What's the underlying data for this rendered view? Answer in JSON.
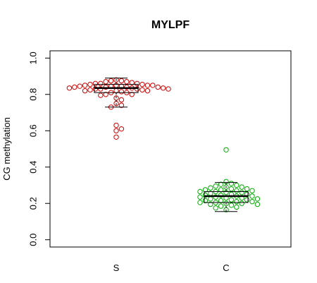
{
  "chart_data": {
    "type": "beeswarm-boxplot",
    "title": "MYLPF",
    "xlabel": "",
    "ylabel": "CG methylation",
    "ylim": [
      -0.04,
      1.04
    ],
    "yticks": [
      "0.0",
      "0.2",
      "0.4",
      "0.6",
      "0.8",
      "1.0"
    ],
    "ytick_values": [
      0.0,
      0.2,
      0.4,
      0.6,
      0.8,
      1.0
    ],
    "categories": [
      "S",
      "C"
    ],
    "series": [
      {
        "category": "S",
        "color": "#cc0000",
        "box": {
          "whisker_low": 0.73,
          "q1": 0.81,
          "median": 0.835,
          "q3": 0.855,
          "whisker_high": 0.89
        },
        "points": [
          0.88,
          0.875,
          0.875,
          0.87,
          0.87,
          0.865,
          0.86,
          0.86,
          0.86,
          0.855,
          0.855,
          0.85,
          0.85,
          0.85,
          0.85,
          0.845,
          0.845,
          0.845,
          0.84,
          0.84,
          0.84,
          0.84,
          0.835,
          0.835,
          0.835,
          0.83,
          0.83,
          0.83,
          0.83,
          0.825,
          0.825,
          0.82,
          0.82,
          0.82,
          0.815,
          0.81,
          0.81,
          0.8,
          0.8,
          0.795,
          0.78,
          0.77,
          0.75,
          0.74,
          0.73,
          0.63,
          0.61,
          0.6,
          0.565
        ]
      },
      {
        "category": "C",
        "color": "#00aa00",
        "box": {
          "whisker_low": 0.155,
          "q1": 0.205,
          "median": 0.24,
          "q3": 0.265,
          "whisker_high": 0.315
        },
        "points": [
          0.495,
          0.32,
          0.31,
          0.305,
          0.3,
          0.295,
          0.29,
          0.29,
          0.285,
          0.28,
          0.28,
          0.275,
          0.275,
          0.27,
          0.27,
          0.265,
          0.265,
          0.26,
          0.26,
          0.255,
          0.25,
          0.25,
          0.245,
          0.245,
          0.24,
          0.24,
          0.235,
          0.235,
          0.23,
          0.23,
          0.225,
          0.225,
          0.22,
          0.22,
          0.215,
          0.215,
          0.21,
          0.21,
          0.205,
          0.205,
          0.2,
          0.2,
          0.195,
          0.195,
          0.19,
          0.185,
          0.18,
          0.175,
          0.165
        ]
      }
    ],
    "grid": false,
    "legend": "none"
  }
}
